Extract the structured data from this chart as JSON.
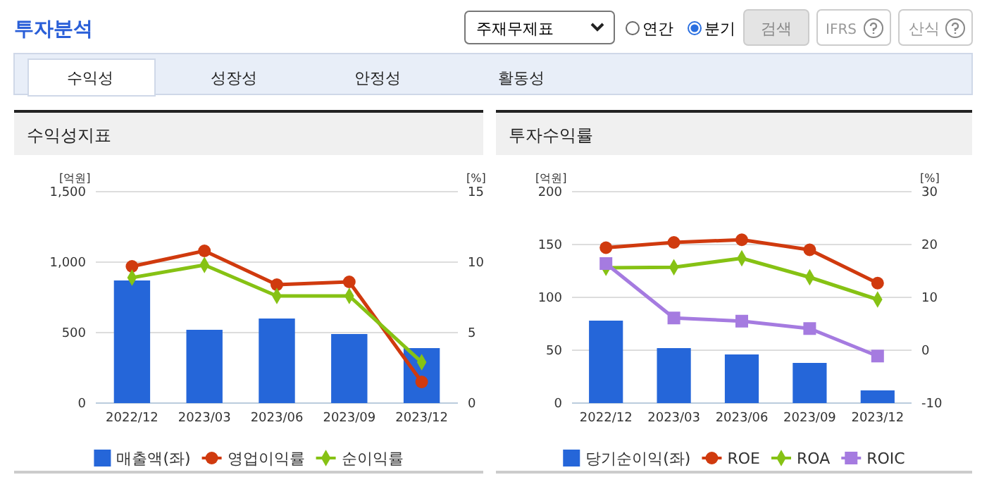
{
  "chart_data": [
    {
      "type": "other",
      "title": "투자분석",
      "annotations": [
        "주재무제표",
        "연간",
        "분기",
        "검색",
        "IFRS",
        "산식",
        "수익성",
        "성장성",
        "안정성",
        "활동성"
      ]
    },
    {
      "type": "bar",
      "title": "수익성지표",
      "ylabel": "[억원]",
      "y2label": "[%]",
      "categories": [
        "2022/12",
        "2023/03",
        "2023/06",
        "2023/09",
        "2023/12"
      ],
      "series": [
        {
          "name": "매출액(좌)",
          "type": "bar",
          "color": "#2566d9",
          "values": [
            870,
            520,
            600,
            490,
            390
          ]
        },
        {
          "name": "영업이익률",
          "type": "line",
          "axis": "y2",
          "marker": "circle",
          "color": "#d03a0e",
          "values": [
            9.7,
            10.8,
            8.4,
            8.6,
            1.5
          ]
        },
        {
          "name": "순이익률",
          "type": "line",
          "axis": "y2",
          "marker": "diamond",
          "color": "#86c214",
          "values": [
            8.9,
            9.8,
            7.6,
            7.6,
            2.9
          ]
        }
      ],
      "ylim": [
        0,
        1500
      ],
      "yticks": [
        0,
        500,
        {
          "value": 1000,
          "label": "1,000"
        },
        {
          "value": 1500,
          "label": "1,500"
        }
      ],
      "y2lim": [
        0,
        15
      ],
      "y2ticks": [
        0,
        5,
        10,
        15
      ],
      "grid": "y",
      "legend": "bottom"
    },
    {
      "type": "bar",
      "title": "투자수익률",
      "ylabel": "[억원]",
      "y2label": "[%]",
      "categories": [
        "2022/12",
        "2023/03",
        "2023/06",
        "2023/09",
        "2023/12"
      ],
      "series": [
        {
          "name": "당기순이익(좌)",
          "type": "bar",
          "color": "#2566d9",
          "values": [
            78,
            52,
            46,
            38,
            12
          ]
        },
        {
          "name": "ROE",
          "type": "line",
          "axis": "y2",
          "marker": "circle",
          "color": "#d03a0e",
          "values": [
            19.4,
            20.4,
            20.9,
            19.0,
            12.7
          ]
        },
        {
          "name": "ROA",
          "type": "line",
          "axis": "y2",
          "marker": "diamond",
          "color": "#86c214",
          "values": [
            15.6,
            15.7,
            17.4,
            13.8,
            9.6
          ]
        },
        {
          "name": "ROIC",
          "type": "line",
          "axis": "y2",
          "marker": "square",
          "color": "#a57be0",
          "values": [
            16.4,
            6.1,
            5.5,
            4.1,
            -1.1
          ]
        }
      ],
      "ylim": [
        0,
        200
      ],
      "yticks": [
        0,
        50,
        100,
        150,
        200
      ],
      "y2lim": [
        -10,
        30
      ],
      "y2ticks": [
        -10,
        0,
        10,
        20,
        30
      ],
      "grid": "y",
      "legend": "bottom"
    }
  ]
}
